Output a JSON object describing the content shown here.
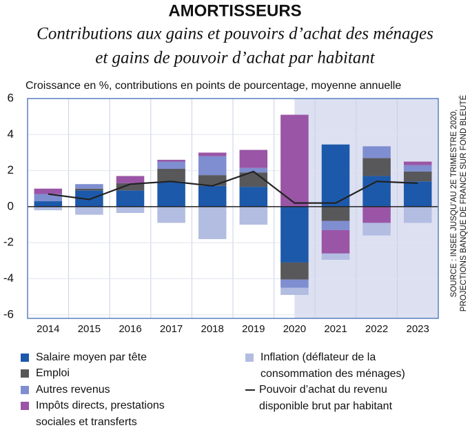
{
  "chart_data": {
    "type": "bar",
    "title": "AMORTISSEURS",
    "subtitle": [
      "Contributions aux gains et pouvoirs d’achat des ménages",
      "et gains de pouvoir d’achat par habitant"
    ],
    "y_axis_label": "Croissance en %, contributions en points de pourcentage, moyenne annuelle",
    "source": [
      "SOURCE : INSEE JUSQU’AU 2E TRIMESTRE 2020,",
      "PROJECTIONS BANQUE DE FRANCE SUR FOND BLEUTÉ"
    ],
    "stacked": true,
    "shaded_from": "2020",
    "categories": [
      "2014",
      "2015",
      "2016",
      "2017",
      "2018",
      "2019",
      "2020",
      "2021",
      "2022",
      "2023"
    ],
    "series": [
      {
        "name": "Salaire moyen par tête",
        "color": "#1d59aa",
        "values": [
          0.3,
          0.9,
          0.9,
          1.4,
          1.15,
          1.1,
          -3.1,
          3.45,
          1.7,
          1.4
        ]
      },
      {
        "name": "Emploi",
        "color": "#58585b",
        "values": [
          0,
          0.1,
          0.4,
          0.7,
          0.6,
          0.8,
          -0.95,
          -0.8,
          1.0,
          0.55
        ]
      },
      {
        "name": "Autres revenus",
        "color": "#7f8ed0",
        "values": [
          0.4,
          0.25,
          0,
          0.4,
          1.05,
          0.25,
          -0.45,
          -0.5,
          0.65,
          0.35
        ]
      },
      {
        "name": "Impôts directs, prestations sociales et transferts",
        "color": "#9a55a6",
        "values": [
          0.3,
          0,
          0.4,
          0.1,
          0.2,
          1.0,
          5.1,
          -1.3,
          -0.9,
          0.2
        ]
      },
      {
        "name": "Inflation (déflateur de la consommation des ménages)",
        "color": "#b3bde2",
        "values": [
          -0.2,
          -0.45,
          -0.35,
          -0.9,
          -1.8,
          -1.0,
          -0.4,
          -0.35,
          -0.7,
          -0.9
        ]
      },
      {
        "name": "Pouvoir d’achat du revenu disponible brut par habitant",
        "type": "line",
        "color": "#222222",
        "values": [
          0.7,
          0.4,
          1.25,
          1.4,
          1.15,
          1.95,
          0.2,
          0.2,
          1.4,
          1.3
        ]
      }
    ],
    "ylim": [
      -6.2,
      6
    ],
    "yticks": [
      -6,
      -4,
      -2,
      0,
      2,
      4,
      6
    ],
    "grid": true
  }
}
